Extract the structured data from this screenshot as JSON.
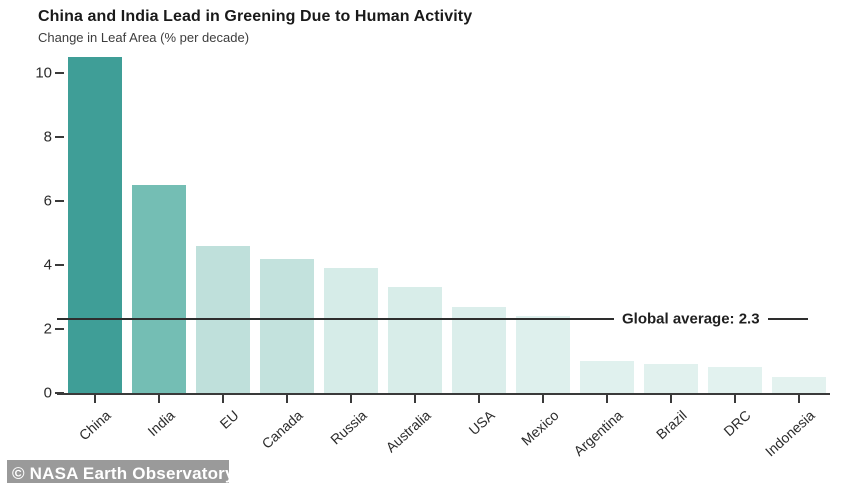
{
  "chart_data": {
    "type": "bar",
    "title": "China and India Lead in Greening Due to Human Activity",
    "subtitle": "Change in Leaf Area (% per decade)",
    "xlabel": "",
    "ylabel": "Change in Leaf Area (% per decade)",
    "grid": false,
    "legend": "none",
    "categories": [
      "China",
      "India",
      "EU",
      "Canada",
      "Russia",
      "Australia",
      "USA",
      "Mexico",
      "Argentina",
      "Brazil",
      "DRC",
      "Indonesia"
    ],
    "values": [
      10.5,
      6.5,
      4.6,
      4.2,
      3.9,
      3.3,
      2.7,
      2.4,
      1.0,
      0.9,
      0.8,
      0.5
    ],
    "bar_colors": [
      "#3F9E97",
      "#74BEB4",
      "#BFE0DB",
      "#C3E2DD",
      "#D6ECE8",
      "#D8EDE9",
      "#DBEEEB",
      "#DEF0ED",
      "#E0F1EE",
      "#E1F1EE",
      "#E2F2EF",
      "#E3F2EF"
    ],
    "y_ticks": [
      0,
      2,
      4,
      6,
      8,
      10
    ],
    "ylim": [
      0,
      10.5
    ],
    "annotation": {
      "label": "Global average: 2.3",
      "value": 2.3
    }
  },
  "colors": {
    "axis": "#3a3a3a",
    "average_line": "#2e2e2e",
    "title_text": "#1a1a1a",
    "subtitle_text": "#3d3d3d",
    "tick_text": "#2b2b2b",
    "watermark_bg": "#9a9a9a",
    "watermark_text": "#ffffff"
  },
  "watermark": {
    "text": "© NASA Earth Observatory"
  }
}
